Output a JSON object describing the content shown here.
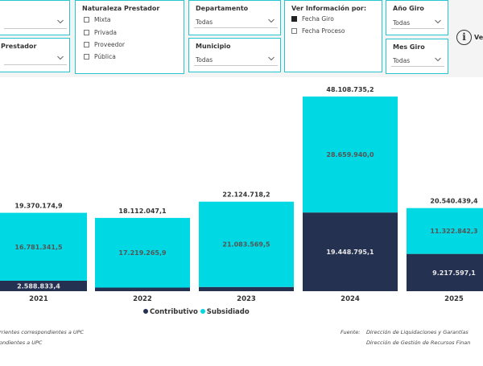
{
  "filters": {
    "prestador_dropdown": {
      "label": "Prestador",
      "value": ""
    },
    "naturaleza": {
      "title": "Naturaleza Prestador",
      "options": [
        "Mixta",
        "Privada",
        "Proveedor",
        "Pública"
      ]
    },
    "departamento": {
      "title": "Departamento",
      "value": "Todas"
    },
    "municipio": {
      "title": "Municipio",
      "value": "Todas"
    },
    "ver_informacion": {
      "title": "Ver Información por:",
      "options": [
        {
          "label": "Fecha Giro",
          "checked": true
        },
        {
          "label": "Fecha Proceso",
          "checked": false
        }
      ]
    },
    "anio_giro": {
      "title": "Año Giro",
      "value": "Todas"
    },
    "mes_giro": {
      "title": "Mes Giro",
      "value": "Todas"
    }
  },
  "info_button": {
    "label": "Ve"
  },
  "chart_data": {
    "type": "bar",
    "stacked": true,
    "categories": [
      "2021",
      "2022",
      "2023",
      "2024",
      "2025"
    ],
    "series": [
      {
        "name": "Contributivo",
        "color": "#253151",
        "values": [
          2588833.4,
          892781.2,
          1041149.0,
          19448795.1,
          9217597.1
        ],
        "labels": [
          "2.588.833,4",
          "",
          "",
          "19.448.795,1",
          "9.217.597,1"
        ]
      },
      {
        "name": "Subsidiado",
        "color": "#00d9e3",
        "values": [
          16781341.5,
          17219265.9,
          21083569.5,
          28659940.0,
          11322842.3
        ],
        "labels": [
          "16.781.341,5",
          "17.219.265,9",
          "21.083.569,5",
          "28.659.940,0",
          "11.322.842,3"
        ]
      }
    ],
    "totals": [
      19370174.9,
      18112047.1,
      22124718.2,
      48108735.2,
      20540439.4
    ],
    "total_labels": [
      "19.370.174,9",
      "18.112.047,1",
      "22.124.718,2",
      "48.108.735,2",
      "20.540.439,4"
    ],
    "ylim": [
      0,
      48108735.2
    ],
    "legend": {
      "position": "bottom",
      "items": [
        "Contributivo",
        "Subsidiado"
      ]
    }
  },
  "footnotes": {
    "left_1": "rrientes correspondientes a UPC",
    "left_2": "ondientes a UPC",
    "fuente_label": "Fuente:",
    "fuente_1": "Dirección de Liquidaciones y Garantías",
    "fuente_2": "Dirección de Gestión de Recursos Finan"
  }
}
